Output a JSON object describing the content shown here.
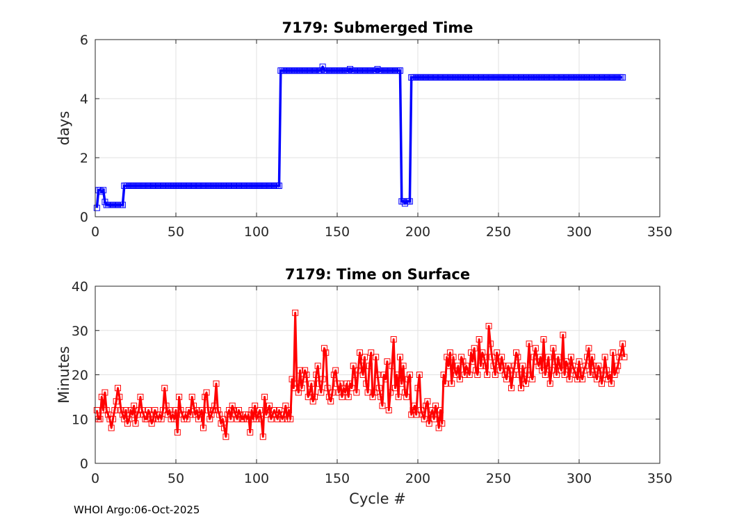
{
  "footer": {
    "credit": "WHOI Argo:06-Oct-2025"
  },
  "chart_data": [
    {
      "type": "line",
      "title": "7179: Submerged Time",
      "xlabel": "",
      "ylabel": "days",
      "xlim": [
        0,
        350
      ],
      "ylim": [
        0,
        6
      ],
      "xticks": [
        0,
        50,
        100,
        150,
        200,
        250,
        300,
        350
      ],
      "yticks": [
        0,
        2,
        4,
        6
      ],
      "grid": true,
      "color": "#0000ff",
      "marker": "square",
      "series": [
        {
          "name": "Submerged Time",
          "segments": [
            {
              "x_start": 1,
              "x_end": 1,
              "value": 0.3
            },
            {
              "x_start": 2,
              "x_end": 5,
              "value": 0.9
            },
            {
              "x_start": 6,
              "x_end": 17,
              "value": 0.4
            },
            {
              "x_start": 18,
              "x_end": 114,
              "value": 1.05
            },
            {
              "x_start": 115,
              "x_end": 189,
              "value": 4.95
            },
            {
              "x_start": 190,
              "x_end": 195,
              "value": 0.52
            },
            {
              "x_start": 196,
              "x_end": 327,
              "value": 4.72
            }
          ],
          "points": [
            {
              "x": 4,
              "y": 0.85
            },
            {
              "x": 6,
              "y": 0.5
            },
            {
              "x": 141,
              "y": 5.08
            },
            {
              "x": 158,
              "y": 5.0
            },
            {
              "x": 175,
              "y": 5.0
            },
            {
              "x": 192,
              "y": 0.45
            }
          ]
        }
      ]
    },
    {
      "type": "line",
      "title": "7179: Time on Surface",
      "xlabel": "Cycle #",
      "ylabel": "Minutes",
      "xlim": [
        0,
        350
      ],
      "ylim": [
        0,
        40
      ],
      "xticks": [
        0,
        50,
        100,
        150,
        200,
        250,
        300,
        350
      ],
      "yticks": [
        0,
        10,
        20,
        30,
        40
      ],
      "grid": true,
      "color": "#ff0000",
      "marker": "square",
      "series": [
        {
          "name": "Time on Surface",
          "x_start": 1,
          "values": [
            12,
            10,
            10,
            15,
            12,
            16,
            12,
            11,
            10,
            8,
            10,
            12,
            14,
            17,
            15,
            12,
            11,
            10,
            12,
            9,
            10,
            12,
            11,
            13,
            9,
            11,
            12,
            15,
            12,
            11,
            10,
            10,
            12,
            11,
            9,
            10,
            12,
            11,
            10,
            11,
            10,
            12,
            17,
            13,
            11,
            12,
            10,
            11,
            10,
            12,
            7,
            15,
            12,
            11,
            10,
            11,
            10,
            12,
            11,
            15,
            13,
            11,
            12,
            10,
            11,
            12,
            8,
            15,
            16,
            12,
            10,
            11,
            12,
            13,
            18,
            12,
            11,
            9,
            10,
            8,
            6,
            11,
            12,
            10,
            13,
            12,
            11,
            10,
            12,
            11,
            10,
            10,
            11,
            10,
            11,
            7,
            12,
            10,
            13,
            10,
            11,
            12,
            10,
            6,
            15,
            11,
            12,
            13,
            10,
            11,
            12,
            11,
            10,
            12,
            11,
            10,
            11,
            13,
            10,
            12,
            10,
            19,
            17,
            34,
            18,
            16,
            21,
            17,
            19,
            21,
            20,
            15,
            16,
            18,
            14,
            15,
            20,
            22,
            18,
            16,
            19,
            26,
            25,
            17,
            15,
            14,
            16,
            20,
            21,
            18,
            16,
            18,
            15,
            17,
            16,
            18,
            15,
            18,
            17,
            22,
            20,
            16,
            21,
            25,
            22,
            20,
            24,
            18,
            16,
            22,
            25,
            15,
            16,
            24,
            20,
            17,
            15,
            13,
            20,
            19,
            23,
            12,
            16,
            22,
            28,
            17,
            20,
            15,
            24,
            18,
            22,
            16,
            15,
            19,
            20,
            11,
            12,
            13,
            11,
            17,
            20,
            12,
            11,
            10,
            13,
            14,
            9,
            11,
            12,
            10,
            13,
            11,
            8,
            12,
            9,
            20,
            18,
            24,
            22,
            25,
            18,
            24,
            21,
            20,
            22,
            19,
            24,
            23,
            20,
            22,
            21,
            20,
            25,
            23,
            26,
            21,
            20,
            28,
            22,
            25,
            24,
            22,
            20,
            31,
            27,
            24,
            22,
            20,
            25,
            23,
            21,
            24,
            22,
            20,
            19,
            22,
            21,
            17,
            20,
            22,
            25,
            24,
            20,
            17,
            22,
            19,
            18,
            21,
            27,
            20,
            19,
            24,
            26,
            23,
            22,
            24,
            21,
            28,
            20,
            22,
            24,
            18,
            21,
            26,
            23,
            20,
            24,
            22,
            21,
            29,
            20,
            23,
            22,
            19,
            24,
            22,
            21,
            20,
            19,
            23,
            20,
            19,
            21,
            22,
            24,
            26,
            20,
            24,
            22,
            20,
            19,
            22,
            21,
            18,
            20,
            24,
            21,
            19,
            20,
            18,
            25,
            20,
            21,
            22,
            24,
            25,
            27,
            24
          ]
        }
      ]
    }
  ]
}
